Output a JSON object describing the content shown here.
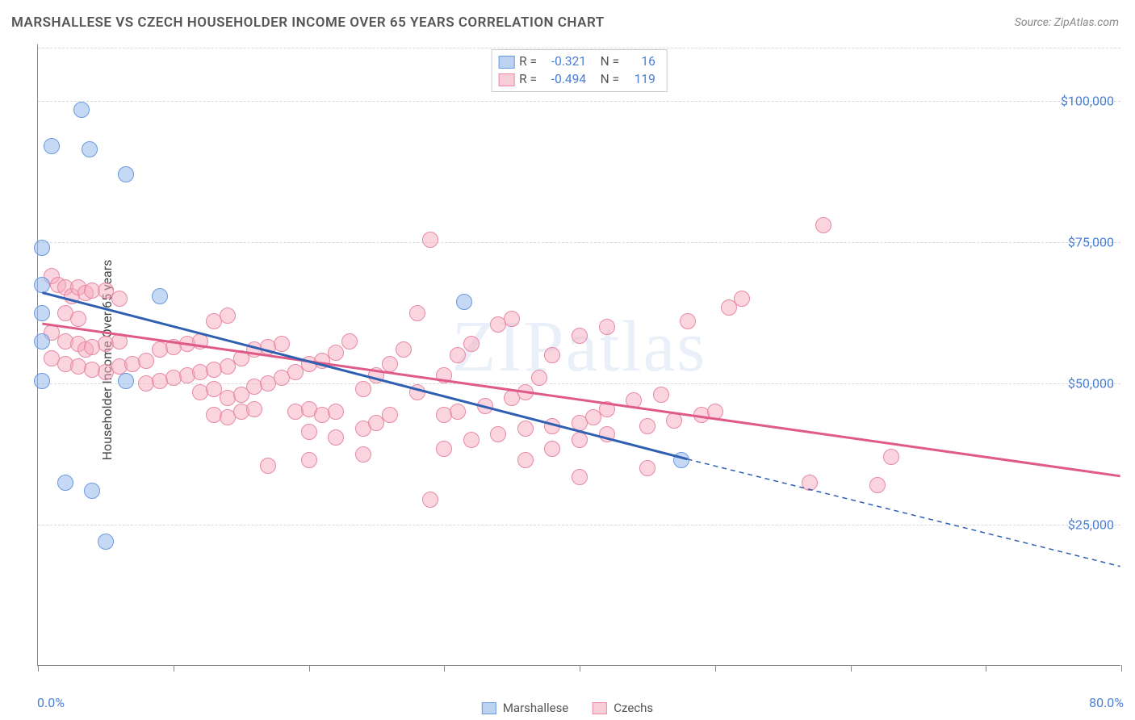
{
  "title": "MARSHALLESE VS CZECH HOUSEHOLDER INCOME OVER 65 YEARS CORRELATION CHART",
  "source": "Source: ZipAtlas.com",
  "watermark": "ZIPatlas",
  "y_axis_title": "Householder Income Over 65 years",
  "chart": {
    "type": "scatter",
    "xlim": [
      0,
      80
    ],
    "ylim": [
      0,
      110000
    ],
    "x_ticks": [
      0,
      10,
      20,
      30,
      40,
      50,
      60,
      70,
      80
    ],
    "x_labels": {
      "min": "0.0%",
      "max": "80.0%"
    },
    "y_gridlines": [
      25000,
      50000,
      75000,
      100000
    ],
    "y_labels": [
      "$25,000",
      "$50,000",
      "$75,000",
      "$100,000"
    ],
    "grid_color": "#d8d8d8",
    "background_color": "#ffffff",
    "axis_color": "#888888",
    "tick_label_color": "#4a7fd6",
    "point_radius": 10,
    "point_opacity": 0.55
  },
  "series": [
    {
      "name": "Marshallese",
      "color_fill": "rgba(150,185,235,0.55)",
      "color_stroke": "#6a9ae0",
      "swatch_fill": "#bcd2f0",
      "swatch_border": "#6a9ae0",
      "stats": {
        "R": "-0.321",
        "N": "16"
      },
      "trend": {
        "x1": 0.3,
        "y1": 66000,
        "x2": 48,
        "y2": 36500,
        "x2_dash": 80,
        "y2_dash": 17500,
        "color": "#2e5fb0",
        "width": 3
      },
      "points": [
        {
          "x": 3.2,
          "y": 98500
        },
        {
          "x": 1.0,
          "y": 92000
        },
        {
          "x": 3.8,
          "y": 91500
        },
        {
          "x": 6.5,
          "y": 87000
        },
        {
          "x": 0.3,
          "y": 74000
        },
        {
          "x": 0.3,
          "y": 62500
        },
        {
          "x": 0.3,
          "y": 57500
        },
        {
          "x": 9.0,
          "y": 65500
        },
        {
          "x": 31.5,
          "y": 64500
        },
        {
          "x": 6.5,
          "y": 50500
        },
        {
          "x": 0.3,
          "y": 50500
        },
        {
          "x": 2.0,
          "y": 32500
        },
        {
          "x": 4.0,
          "y": 31000
        },
        {
          "x": 5.0,
          "y": 22000
        },
        {
          "x": 47.5,
          "y": 36500
        },
        {
          "x": 0.3,
          "y": 67500
        }
      ]
    },
    {
      "name": "Czechs",
      "color_fill": "rgba(245,170,190,0.5)",
      "color_stroke": "#e889a5",
      "swatch_fill": "#f7cdd8",
      "swatch_border": "#e889a5",
      "stats": {
        "R": "-0.494",
        "N": "119"
      },
      "trend": {
        "x1": 0.3,
        "y1": 60500,
        "x2": 80,
        "y2": 33500,
        "color": "#e05a88",
        "width": 3
      },
      "points": [
        {
          "x": 1,
          "y": 69000
        },
        {
          "x": 1.5,
          "y": 67500
        },
        {
          "x": 2,
          "y": 67000
        },
        {
          "x": 2.5,
          "y": 65500
        },
        {
          "x": 3,
          "y": 67000
        },
        {
          "x": 3.5,
          "y": 66000
        },
        {
          "x": 4,
          "y": 66500
        },
        {
          "x": 2,
          "y": 62500
        },
        {
          "x": 3,
          "y": 61500
        },
        {
          "x": 5,
          "y": 66500
        },
        {
          "x": 6,
          "y": 65000
        },
        {
          "x": 1,
          "y": 59000
        },
        {
          "x": 2,
          "y": 57500
        },
        {
          "x": 3,
          "y": 57000
        },
        {
          "x": 3.5,
          "y": 56000
        },
        {
          "x": 4,
          "y": 56500
        },
        {
          "x": 5,
          "y": 57000
        },
        {
          "x": 6,
          "y": 57500
        },
        {
          "x": 1,
          "y": 54500
        },
        {
          "x": 2,
          "y": 53500
        },
        {
          "x": 3,
          "y": 53000
        },
        {
          "x": 4,
          "y": 52500
        },
        {
          "x": 5,
          "y": 52000
        },
        {
          "x": 6,
          "y": 53000
        },
        {
          "x": 7,
          "y": 53500
        },
        {
          "x": 8,
          "y": 54000
        },
        {
          "x": 9,
          "y": 56000
        },
        {
          "x": 10,
          "y": 56500
        },
        {
          "x": 11,
          "y": 57000
        },
        {
          "x": 12,
          "y": 57500
        },
        {
          "x": 13,
          "y": 61000
        },
        {
          "x": 14,
          "y": 62000
        },
        {
          "x": 8,
          "y": 50000
        },
        {
          "x": 9,
          "y": 50500
        },
        {
          "x": 10,
          "y": 51000
        },
        {
          "x": 11,
          "y": 51500
        },
        {
          "x": 12,
          "y": 52000
        },
        {
          "x": 13,
          "y": 52500
        },
        {
          "x": 14,
          "y": 53000
        },
        {
          "x": 15,
          "y": 54500
        },
        {
          "x": 16,
          "y": 56000
        },
        {
          "x": 17,
          "y": 56500
        },
        {
          "x": 18,
          "y": 57000
        },
        {
          "x": 12,
          "y": 48500
        },
        {
          "x": 13,
          "y": 49000
        },
        {
          "x": 14,
          "y": 47500
        },
        {
          "x": 15,
          "y": 48000
        },
        {
          "x": 16,
          "y": 49500
        },
        {
          "x": 17,
          "y": 50000
        },
        {
          "x": 18,
          "y": 51000
        },
        {
          "x": 19,
          "y": 52000
        },
        {
          "x": 20,
          "y": 53500
        },
        {
          "x": 21,
          "y": 54000
        },
        {
          "x": 22,
          "y": 55500
        },
        {
          "x": 23,
          "y": 57500
        },
        {
          "x": 13,
          "y": 44500
        },
        {
          "x": 14,
          "y": 44000
        },
        {
          "x": 15,
          "y": 45000
        },
        {
          "x": 16,
          "y": 45500
        },
        {
          "x": 19,
          "y": 45000
        },
        {
          "x": 20,
          "y": 45500
        },
        {
          "x": 21,
          "y": 44500
        },
        {
          "x": 22,
          "y": 45000
        },
        {
          "x": 24,
          "y": 49000
        },
        {
          "x": 25,
          "y": 51500
        },
        {
          "x": 26,
          "y": 53500
        },
        {
          "x": 27,
          "y": 56000
        },
        {
          "x": 28,
          "y": 62500
        },
        {
          "x": 29,
          "y": 75500
        },
        {
          "x": 20,
          "y": 41500
        },
        {
          "x": 22,
          "y": 40500
        },
        {
          "x": 24,
          "y": 42000
        },
        {
          "x": 25,
          "y": 43000
        },
        {
          "x": 26,
          "y": 44500
        },
        {
          "x": 28,
          "y": 48500
        },
        {
          "x": 30,
          "y": 51500
        },
        {
          "x": 31,
          "y": 55000
        },
        {
          "x": 32,
          "y": 57000
        },
        {
          "x": 34,
          "y": 60500
        },
        {
          "x": 35,
          "y": 61500
        },
        {
          "x": 30,
          "y": 44500
        },
        {
          "x": 31,
          "y": 45000
        },
        {
          "x": 33,
          "y": 46000
        },
        {
          "x": 35,
          "y": 47500
        },
        {
          "x": 36,
          "y": 48500
        },
        {
          "x": 37,
          "y": 51000
        },
        {
          "x": 38,
          "y": 55000
        },
        {
          "x": 40,
          "y": 58500
        },
        {
          "x": 42,
          "y": 60000
        },
        {
          "x": 48,
          "y": 61000
        },
        {
          "x": 51,
          "y": 63500
        },
        {
          "x": 52,
          "y": 65000
        },
        {
          "x": 30,
          "y": 38500
        },
        {
          "x": 32,
          "y": 40000
        },
        {
          "x": 34,
          "y": 41000
        },
        {
          "x": 36,
          "y": 42000
        },
        {
          "x": 38,
          "y": 42500
        },
        {
          "x": 40,
          "y": 43000
        },
        {
          "x": 41,
          "y": 44000
        },
        {
          "x": 42,
          "y": 45500
        },
        {
          "x": 44,
          "y": 47000
        },
        {
          "x": 46,
          "y": 48000
        },
        {
          "x": 17,
          "y": 35500
        },
        {
          "x": 20,
          "y": 36500
        },
        {
          "x": 24,
          "y": 37500
        },
        {
          "x": 29,
          "y": 29500
        },
        {
          "x": 36,
          "y": 36500
        },
        {
          "x": 38,
          "y": 38500
        },
        {
          "x": 40,
          "y": 40000
        },
        {
          "x": 42,
          "y": 41000
        },
        {
          "x": 45,
          "y": 42500
        },
        {
          "x": 47,
          "y": 43500
        },
        {
          "x": 49,
          "y": 44500
        },
        {
          "x": 50,
          "y": 45000
        },
        {
          "x": 40,
          "y": 33500
        },
        {
          "x": 45,
          "y": 35000
        },
        {
          "x": 58,
          "y": 78000
        },
        {
          "x": 63,
          "y": 37000
        },
        {
          "x": 57,
          "y": 32500
        },
        {
          "x": 62,
          "y": 32000
        }
      ]
    }
  ],
  "legend": {
    "items": [
      {
        "label": "Marshallese"
      },
      {
        "label": "Czechs"
      }
    ]
  }
}
